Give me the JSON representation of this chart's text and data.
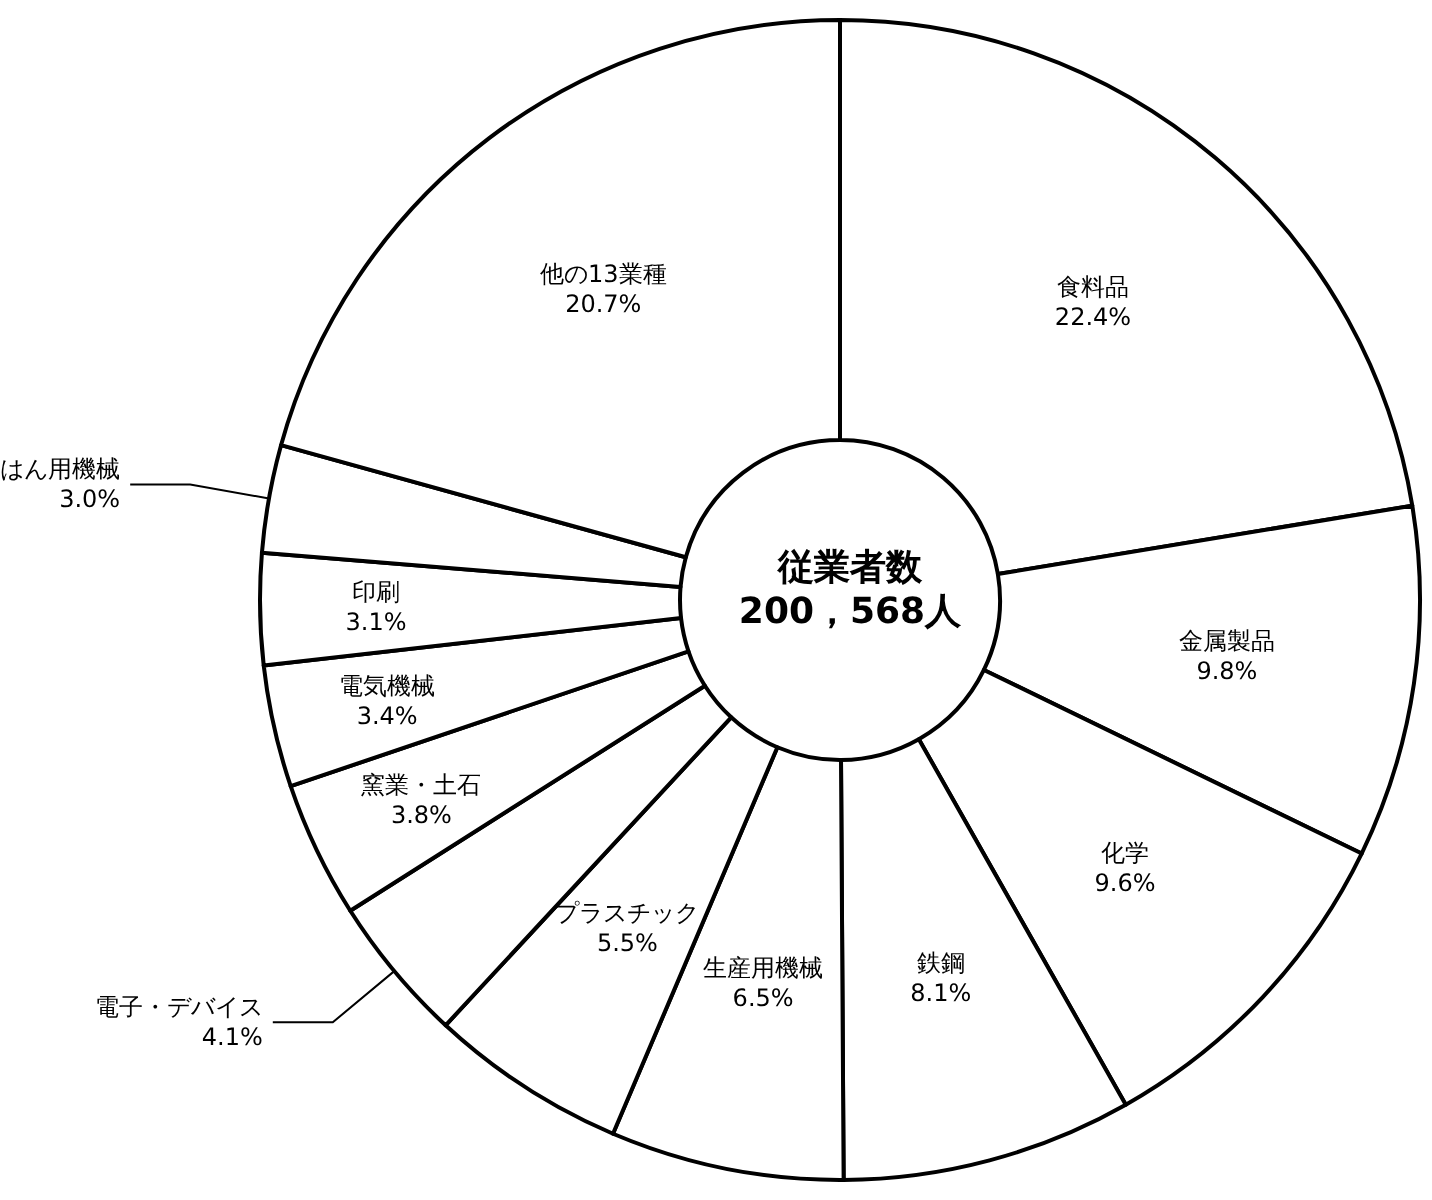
{
  "chart_data": {
    "type": "donut",
    "title": "従業者数",
    "subtitle": "200，568人",
    "categories": [
      "食料品",
      "金属製品",
      "化学",
      "鉄鋼",
      "生産用機械",
      "プラスチック",
      "電子・デバイス",
      "窯業・土石",
      "電気機械",
      "印刷",
      "はん用機械",
      "他の13業種"
    ],
    "values": [
      22.4,
      9.8,
      9.6,
      8.1,
      6.5,
      5.5,
      4.1,
      3.8,
      3.4,
      3.1,
      3.0,
      20.7
    ],
    "value_labels": [
      "22.4%",
      "9.8%",
      "9.6%",
      "8.1%",
      "6.5%",
      "5.5%",
      "4.1%",
      "3.8%",
      "3.4%",
      "3.1%",
      "3.0%",
      "20.7%"
    ],
    "colors": [
      "#ffffff",
      "#ffffff",
      "#ffffff",
      "#ffffff",
      "#ffffff",
      "#ffffff",
      "#ffffff",
      "#ffffff",
      "#ffffff",
      "#ffffff",
      "#ffffff",
      "#ffffff"
    ],
    "legend": false
  }
}
